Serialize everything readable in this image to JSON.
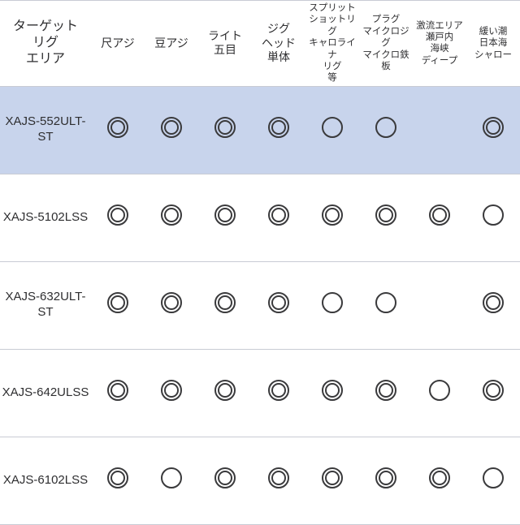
{
  "colors": {
    "border": "#c8cbd4",
    "row_highlight_bg": "#c8d4ec",
    "symbol": "#3a3a3c",
    "text": "#2e2e30",
    "bg": "#ffffff"
  },
  "fonts": {
    "header_corner_pt": 16,
    "header_normal_pt": 14,
    "header_small_pt": 11.5,
    "row_label_pt": 15
  },
  "legend": {
    "double": "◎",
    "single": "○",
    "blank": ""
  },
  "header": {
    "corner": "ターゲット\nリグ\nエリア",
    "columns": [
      {
        "label": "尺アジ",
        "size": "normal"
      },
      {
        "label": "豆アジ",
        "size": "normal"
      },
      {
        "label": "ライト\n五目",
        "size": "normal"
      },
      {
        "label": "ジグ\nヘッド\n単体",
        "size": "normal"
      },
      {
        "label": "スプリット\nショットリグ\nキャロライナ\nリグ\n等",
        "size": "small"
      },
      {
        "label": "プラグ\nマイクロジグ\nマイクロ鉄板",
        "size": "small"
      },
      {
        "label": "激流エリア\n瀬戸内\n海峡\nディープ",
        "size": "small"
      },
      {
        "label": "緩い潮\n日本海\nシャロー",
        "size": "small"
      }
    ]
  },
  "rows": [
    {
      "label": "XAJS-552ULT-\nST",
      "highlight": true,
      "cells": [
        "double",
        "double",
        "double",
        "double",
        "single",
        "single",
        "",
        "double"
      ]
    },
    {
      "label": "XAJS-5102LSS",
      "highlight": false,
      "cells": [
        "double",
        "double",
        "double",
        "double",
        "double",
        "double",
        "double",
        "single"
      ]
    },
    {
      "label": "XAJS-632ULT-\nST",
      "highlight": false,
      "cells": [
        "double",
        "double",
        "double",
        "double",
        "single",
        "single",
        "",
        "double"
      ]
    },
    {
      "label": "XAJS-642ULSS",
      "highlight": false,
      "cells": [
        "double",
        "double",
        "double",
        "double",
        "double",
        "double",
        "single",
        "double"
      ]
    },
    {
      "label": "XAJS-6102LSS",
      "highlight": false,
      "cells": [
        "double",
        "single",
        "double",
        "double",
        "double",
        "double",
        "double",
        "single"
      ]
    }
  ]
}
